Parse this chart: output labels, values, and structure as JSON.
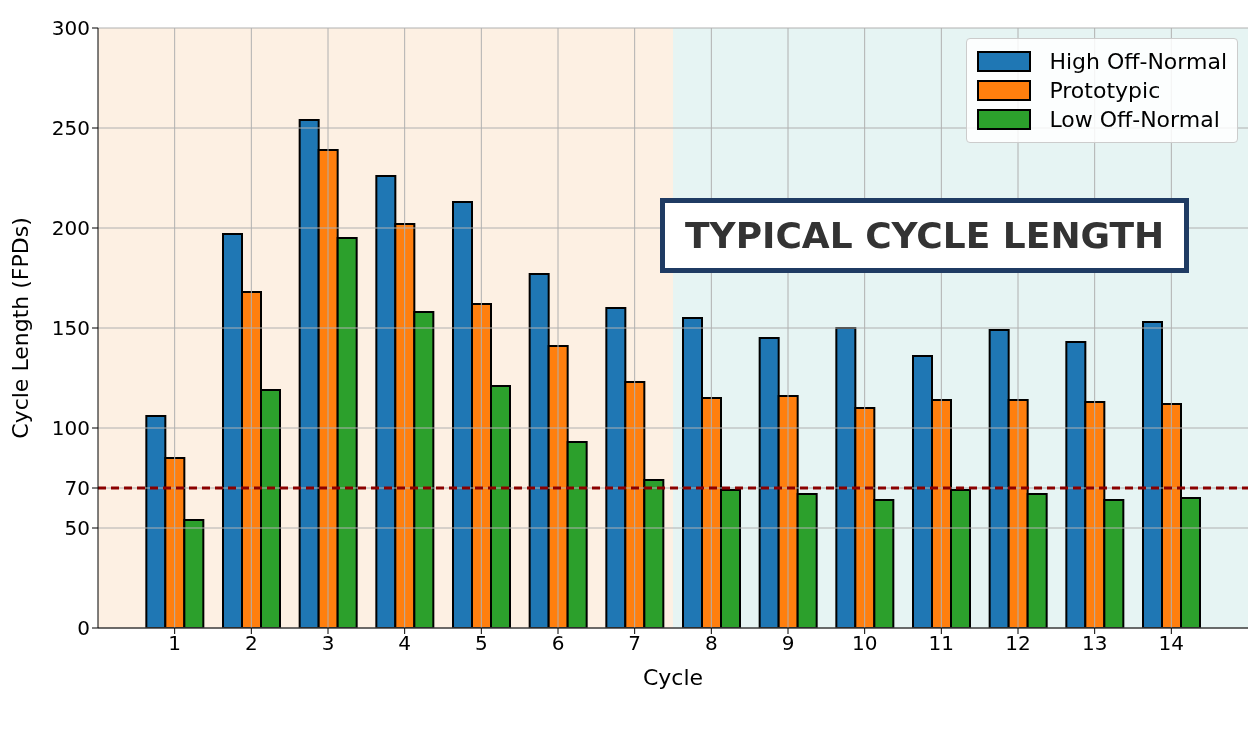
{
  "chart_data": {
    "type": "bar",
    "xlabel": "Cycle",
    "ylabel": "Cycle Length (FPDs)",
    "x": [
      1,
      2,
      3,
      4,
      5,
      6,
      7,
      8,
      9,
      10,
      11,
      12,
      13,
      14
    ],
    "series": [
      {
        "name": "High Off-Normal",
        "color": "#1f77b4",
        "values": [
          106,
          197,
          254,
          226,
          213,
          177,
          160,
          155,
          145,
          150,
          136,
          149,
          143,
          153
        ]
      },
      {
        "name": "Prototypic",
        "color": "#ff7f0e",
        "values": [
          85,
          168,
          239,
          202,
          162,
          141,
          123,
          115,
          116,
          110,
          114,
          114,
          113,
          112
        ]
      },
      {
        "name": "Low Off-Normal",
        "color": "#2ca02c",
        "values": [
          54,
          119,
          195,
          158,
          121,
          93,
          74,
          69,
          67,
          64,
          69,
          67,
          64,
          65
        ]
      }
    ],
    "xlim": [
      0,
      15
    ],
    "xticks": [
      1,
      2,
      3,
      4,
      5,
      6,
      7,
      8,
      9,
      10,
      11,
      12,
      13,
      14
    ],
    "ylim": [
      0,
      300
    ],
    "yticks": [
      0,
      50,
      70,
      100,
      150,
      200,
      250,
      300
    ],
    "ref_lines": [
      {
        "axis": "y",
        "value": 70,
        "color": "#8b0000",
        "line_style": "dashed"
      }
    ],
    "bands": [
      {
        "axis": "x",
        "from": 0,
        "to": 7.5,
        "color": "#fdf0e3"
      },
      {
        "axis": "x",
        "from": 7.5,
        "to": 15,
        "color": "#e6f4f3"
      }
    ],
    "annotations": [
      "TYPICAL CYCLE LENGTH"
    ],
    "grid": true,
    "legend": "top right"
  }
}
